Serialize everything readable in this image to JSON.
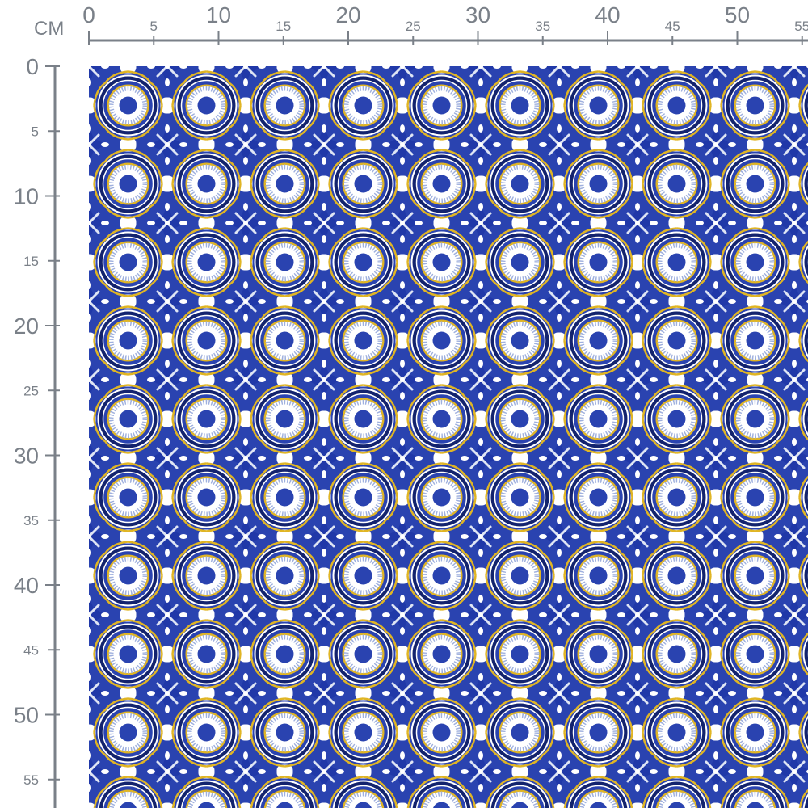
{
  "ruler": {
    "unit": "CM",
    "horizontal_labels": [
      "0",
      "5",
      "10",
      "15",
      "20",
      "25",
      "30",
      "35",
      "40",
      "45",
      "50",
      "55"
    ],
    "vertical_labels": [
      "0",
      "5",
      "10",
      "15",
      "20",
      "25",
      "30",
      "35",
      "40",
      "45",
      "50",
      "55"
    ],
    "color": "#7a8088"
  },
  "fabric": {
    "pattern": "azulejo-tile-repeat",
    "colors": {
      "blue": "#2a43b0",
      "dark_blue": "#13236e",
      "yellow": "#e0b524",
      "white": "#ffffff",
      "pale": "#dfe5f4"
    }
  }
}
